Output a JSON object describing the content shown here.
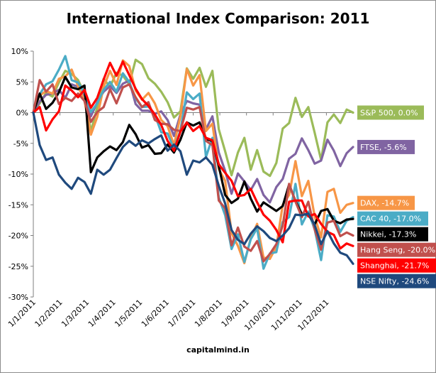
{
  "chart_data": {
    "type": "line",
    "title": "International Index Comparison: 2011",
    "source": "capitalmind.in",
    "xlabel": "",
    "ylabel": "",
    "ylim": [
      -30,
      10
    ],
    "yticks": [
      "10%",
      "5%",
      "0%",
      "-5%",
      "-10%",
      "-15%",
      "-20%",
      "-25%",
      "-30%"
    ],
    "xticks": [
      "1/1/2011",
      "1/2/2011",
      "1/3/2011",
      "1/4/2011",
      "1/5/2011",
      "1/6/2011",
      "1/7/2011",
      "1/8/2011",
      "1/9/2011",
      "1/10/2011",
      "1/11/2011",
      "1/12/2011"
    ],
    "grid": false,
    "legend": "end-of-line labels",
    "series": [
      {
        "name": "S&P 500",
        "end_label": "S&P 500, 0.0%",
        "color": "#9bbb59",
        "values": [
          0,
          1.5,
          3.2,
          2.6,
          4.9,
          6.8,
          6.3,
          5.3,
          3.1,
          -3.1,
          0.9,
          5.5,
          4.2,
          6.5,
          6.0,
          4.6,
          8.6,
          7.9,
          5.6,
          4.7,
          3.4,
          1.7,
          -0.8,
          0.2,
          7.2,
          5.5,
          7.3,
          4.2,
          6.8,
          -2.7,
          -6.3,
          -10.2,
          -6.5,
          -4.1,
          -9.3,
          -6.1,
          -9.6,
          -10.3,
          -8.2,
          -2.6,
          -1.7,
          2.4,
          -0.7,
          0.9,
          -3.3,
          -7.7,
          -1.6,
          -0.3,
          -1.7,
          0.5,
          0.0
        ]
      },
      {
        "name": "FTSE",
        "end_label": "FTSE, -5.6%",
        "color": "#8064a2",
        "values": [
          0,
          1.8,
          2.9,
          3.1,
          3.7,
          2.4,
          4.6,
          4.2,
          2.4,
          -0.6,
          1.7,
          3.4,
          4.3,
          3.2,
          4.7,
          5.2,
          1.4,
          0.3,
          0.3,
          -0.2,
          0.2,
          -1.2,
          -3.8,
          -0.3,
          1.9,
          1.5,
          1.3,
          -2.7,
          -0.6,
          -6.5,
          -9.5,
          -13.2,
          -9.9,
          -11.2,
          -12.6,
          -10.8,
          -13.4,
          -14.6,
          -12.1,
          -10.8,
          -7.5,
          -6.7,
          -4.2,
          -6.1,
          -8.3,
          -7.8,
          -4.4,
          -6.2,
          -8.7,
          -6.6,
          -5.6
        ]
      },
      {
        "name": "DAX",
        "end_label": "DAX, -14.7%",
        "color": "#f79646",
        "values": [
          0,
          2.8,
          3.5,
          3.1,
          5.5,
          5.9,
          7.0,
          4.3,
          1.9,
          -3.6,
          -0.7,
          4.2,
          6.8,
          4.5,
          8.5,
          7.6,
          3.6,
          2.1,
          3.2,
          1.5,
          -1.2,
          -2.2,
          -5.3,
          -0.6,
          7.1,
          4.4,
          6.1,
          -3.0,
          -1.8,
          -9.2,
          -11.1,
          -19.6,
          -21.7,
          -24.5,
          -20.4,
          -18.1,
          -23.6,
          -23.8,
          -21.8,
          -15.0,
          -13.4,
          -7.9,
          -13.6,
          -11.1,
          -16.9,
          -20.3,
          -12.9,
          -12.4,
          -16.3,
          -15.0,
          -14.7
        ]
      },
      {
        "name": "CAC 40",
        "end_label": "CAC 40, -17.0%",
        "color": "#4bacc6",
        "values": [
          0,
          3.0,
          4.6,
          5.1,
          7.0,
          9.2,
          5.3,
          4.9,
          3.2,
          0.1,
          1.5,
          3.7,
          5.0,
          3.4,
          6.4,
          5.0,
          2.3,
          0.9,
          1.0,
          -0.3,
          -3.2,
          -3.4,
          -5.9,
          -2.9,
          3.3,
          2.2,
          3.1,
          -7.2,
          -4.1,
          -13.8,
          -16.7,
          -22.2,
          -19.8,
          -24.3,
          -20.6,
          -18.8,
          -25.4,
          -22.9,
          -22.7,
          -17.8,
          -17.0,
          -11.6,
          -18.2,
          -16.1,
          -19.0,
          -24.0,
          -16.7,
          -16.9,
          -19.4,
          -17.6,
          -17.0
        ]
      },
      {
        "name": "Nikkei",
        "end_label": "Nikkei, -17.3%",
        "color": "#000000",
        "values": [
          0,
          3.1,
          0.6,
          1.6,
          3.3,
          5.8,
          4.1,
          3.8,
          4.4,
          -9.7,
          -7.3,
          -6.3,
          -5.5,
          -6.1,
          -4.8,
          -2.0,
          -3.5,
          -5.7,
          -5.3,
          -6.7,
          -6.6,
          -5.2,
          -6.5,
          -4.4,
          -1.6,
          -2.1,
          -1.6,
          -4.3,
          -4.6,
          -8.7,
          -13.4,
          -14.7,
          -14.0,
          -11.2,
          -14.0,
          -16.1,
          -14.6,
          -15.3,
          -16.0,
          -15.2,
          -11.7,
          -14.4,
          -16.5,
          -16.6,
          -18.2,
          -16.0,
          -15.7,
          -17.6,
          -18.0,
          -17.4,
          -17.3
        ]
      },
      {
        "name": "Hang Seng",
        "end_label": "Hang Seng, -20.0%",
        "color": "#c0504d",
        "values": [
          0,
          5.3,
          3.4,
          4.6,
          1.4,
          2.4,
          1.9,
          3.1,
          1.9,
          -1.5,
          0.1,
          0.9,
          3.8,
          1.5,
          4.1,
          4.6,
          2.5,
          0.9,
          1.7,
          -1.2,
          -1.8,
          -1.9,
          -2.8,
          -3.0,
          0.8,
          0.5,
          0.9,
          -4.6,
          -5.3,
          -14.3,
          -15.6,
          -21.6,
          -18.7,
          -21.8,
          -22.5,
          -20.9,
          -24.2,
          -23.0,
          -21.4,
          -18.4,
          -11.6,
          -14.5,
          -17.0,
          -14.5,
          -19.0,
          -22.3,
          -17.9,
          -17.6,
          -20.1,
          -19.5,
          -20.0
        ]
      },
      {
        "name": "Shanghai",
        "end_label": "Shanghai, -21.7%",
        "color": "#ff0000",
        "values": [
          0,
          0.9,
          -2.9,
          -1.1,
          0.2,
          4.4,
          3.6,
          2.5,
          3.7,
          0.8,
          2.4,
          5.4,
          8.1,
          6.0,
          8.3,
          6.1,
          3.9,
          2.2,
          1.1,
          -0.3,
          -2.0,
          -4.6,
          -6.2,
          -3.1,
          -1.6,
          -3.0,
          -2.2,
          -4.1,
          -4.5,
          -8.4,
          -9.8,
          -11.1,
          -13.6,
          -13.4,
          -12.4,
          -14.6,
          -16.6,
          -17.6,
          -19.1,
          -21.1,
          -14.5,
          -14.3,
          -14.3,
          -16.9,
          -16.5,
          -18.1,
          -19.4,
          -19.9,
          -22.1,
          -21.3,
          -21.7
        ]
      },
      {
        "name": "NSE Nifty",
        "end_label": "NSE Nifty, -24.6%",
        "color": "#1f497d",
        "values": [
          0,
          -5.3,
          -7.7,
          -7.3,
          -10.1,
          -11.4,
          -12.4,
          -10.6,
          -11.3,
          -13.2,
          -9.3,
          -10.1,
          -9.3,
          -7.4,
          -5.6,
          -4.6,
          -5.4,
          -4.5,
          -5.0,
          -4.3,
          -3.7,
          -6.2,
          -5.2,
          -6.3,
          -10.1,
          -7.8,
          -8.1,
          -7.3,
          -8.5,
          -11.9,
          -14.8,
          -19.1,
          -20.7,
          -21.4,
          -19.7,
          -18.5,
          -19.3,
          -20.4,
          -20.9,
          -20.0,
          -18.8,
          -16.6,
          -16.7,
          -16.4,
          -18.3,
          -21.4,
          -19.3,
          -21.3,
          -22.8,
          -23.2,
          -24.6
        ]
      }
    ]
  }
}
